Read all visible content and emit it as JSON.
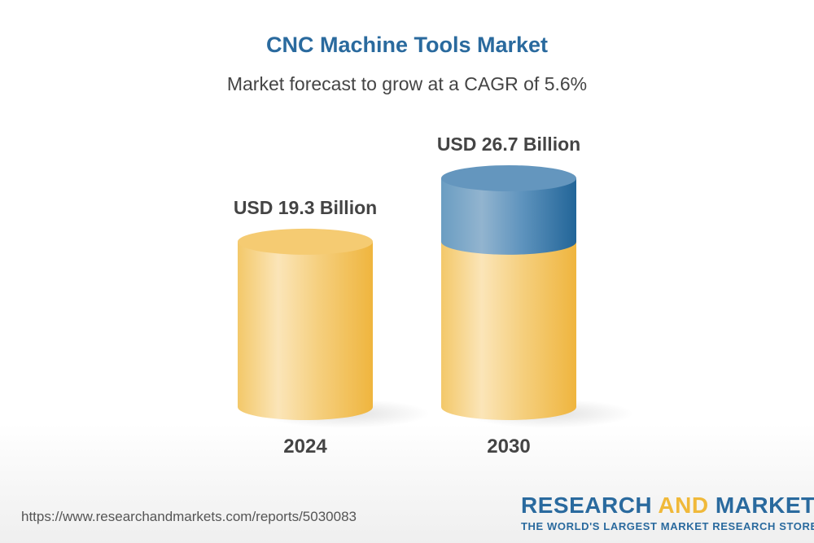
{
  "chart_data": {
    "type": "bar",
    "title": "CNC Machine Tools Market",
    "subtitle": "Market forecast to grow at a CAGR of 5.6%",
    "categories": [
      "2024",
      "2030"
    ],
    "values": [
      19.3,
      26.7
    ],
    "data_labels": [
      "USD 19.3 Billion",
      "USD 26.7 Billion"
    ],
    "ylim": [
      0,
      26.7
    ],
    "grid": false,
    "style": "3d-cylinder",
    "colors": {
      "base": "#f2c05a",
      "growth": "#3a78a8"
    }
  },
  "footer": {
    "url": "https://www.researchandmarkets.com/reports/5030083",
    "logo_word1": "RESEARCH",
    "logo_word2": "AND",
    "logo_word3": "MARKETS",
    "logo_tagline": "THE WORLD'S LARGEST MARKET RESEARCH STORE"
  }
}
